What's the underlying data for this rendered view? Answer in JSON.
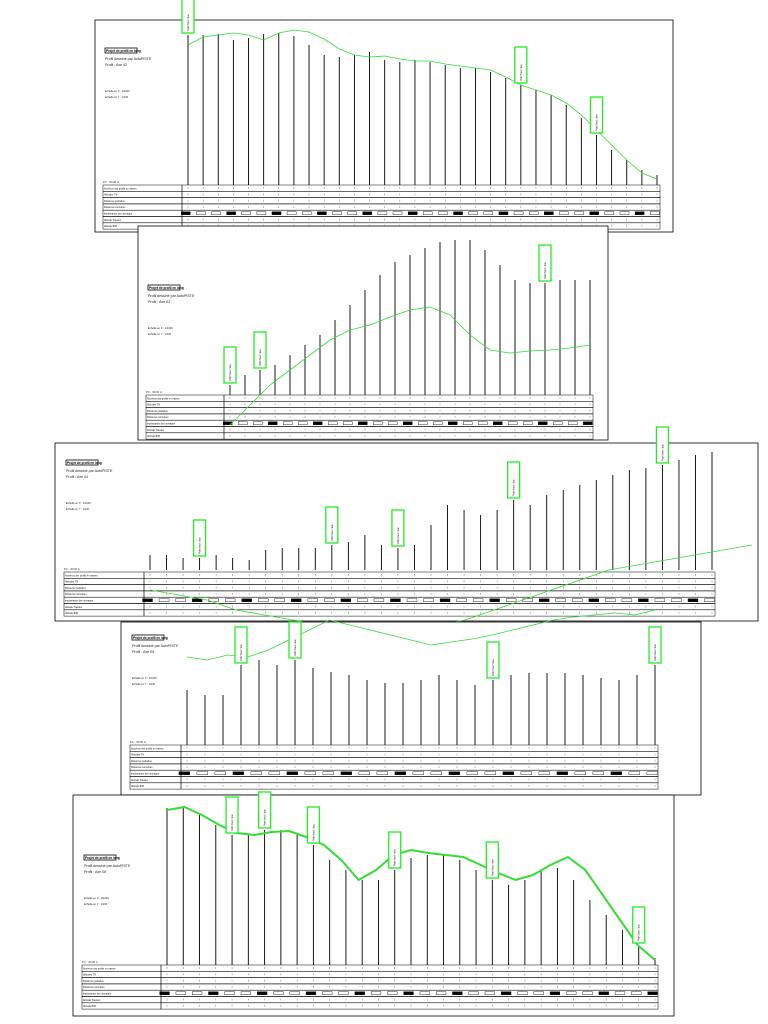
{
  "common": {
    "title_box": "Projet de profil en long",
    "drawn_by": "Profil dessiné par AutoPISTE",
    "scale_x": "Echelle en X : 1/1000",
    "scale_y": "Echelle en Y : 1/100",
    "pc": "PC : -50.00 m",
    "table_rows": [
      "Numéros des profils en travers",
      "Altitudes TN",
      "Distances partielles",
      "Distances cumulées",
      "Implantation des ouvrages",
      "Altitude Travaux",
      "Altitude BIM"
    ],
    "point_label": "Point haut / bas",
    "colors": {
      "line": "#33dd33",
      "box": "#22ee22",
      "frame": "#000000"
    }
  },
  "panels": [
    {
      "profile": "Profil : Axe 02",
      "bars": [
        150,
        150,
        151,
        145,
        147,
        151,
        152,
        149,
        140,
        130,
        128,
        130,
        133,
        125,
        123,
        125,
        123,
        120,
        117,
        117,
        113,
        107,
        100,
        95,
        90,
        80,
        67,
        50,
        35,
        25,
        15,
        10
      ],
      "ground": [
        140,
        148,
        150,
        152,
        150,
        145,
        152,
        155,
        153,
        146,
        136,
        130,
        128,
        129,
        126,
        124,
        124,
        121,
        119,
        117,
        115,
        108,
        100,
        95,
        90,
        82,
        70,
        55,
        40,
        25,
        12,
        6
      ],
      "labels": [
        0,
        22,
        27
      ]
    },
    {
      "profile": "Profil : Axe 03",
      "bars": [
        10,
        20,
        25,
        30,
        40,
        50,
        60,
        75,
        90,
        105,
        120,
        133,
        140,
        147,
        153,
        155,
        155,
        145,
        130,
        115,
        112,
        112,
        115,
        115,
        115
      ],
      "ground": [
        -30,
        -10,
        10,
        25,
        40,
        55,
        65,
        70,
        78,
        85,
        88,
        80,
        60,
        45,
        42,
        44,
        45,
        47,
        50
      ],
      "labels": [
        0,
        2,
        21
      ]
    },
    {
      "profile": "Profil : Axe 04",
      "bars": [
        15,
        15,
        12,
        12,
        15,
        12,
        10,
        20,
        22,
        22,
        22,
        25,
        28,
        35,
        25,
        22,
        25,
        45,
        65,
        60,
        55,
        60,
        70,
        65,
        75,
        80,
        85,
        90,
        95,
        100,
        102,
        105,
        110,
        115,
        118
      ],
      "ground": [
        -20,
        -25,
        -30,
        -40,
        -45,
        -50,
        -55,
        -60,
        -65,
        -60,
        -55,
        -50,
        -40,
        -30,
        -20,
        -10,
        0,
        5,
        10,
        15,
        20,
        25
      ],
      "labels": [
        3,
        11,
        15,
        22,
        31
      ]
    },
    {
      "profile": "Profil : Axe 05",
      "bars": [
        55,
        50,
        50,
        80,
        85,
        80,
        85,
        77,
        73,
        70,
        65,
        62,
        62,
        65,
        70,
        65,
        60,
        65,
        70,
        72,
        72,
        72,
        70,
        67,
        65,
        70,
        80
      ],
      "ground": [
        88,
        85,
        90,
        88,
        95,
        105,
        115,
        125,
        120,
        115,
        110,
        105,
        100,
        103,
        106,
        110,
        115,
        120,
        125,
        128,
        130,
        132,
        130,
        135
      ],
      "labels": [
        3,
        6,
        17,
        26
      ]
    },
    {
      "profile": "Profil : Axe 06",
      "bars": [
        157,
        157,
        150,
        140,
        130,
        130,
        135,
        135,
        130,
        120,
        105,
        95,
        85,
        85,
        95,
        107,
        110,
        110,
        105,
        95,
        85,
        80,
        85,
        95,
        97,
        85,
        65,
        50,
        35,
        20,
        7
      ],
      "ground": [
        155,
        158,
        150,
        140,
        132,
        130,
        133,
        134,
        128,
        120,
        105,
        85,
        95,
        110,
        115,
        112,
        110,
        108,
        100,
        92,
        85,
        90,
        100,
        108,
        95,
        70,
        45,
        20,
        5
      ],
      "labels": [
        4,
        6,
        9,
        14,
        20,
        29
      ]
    }
  ]
}
